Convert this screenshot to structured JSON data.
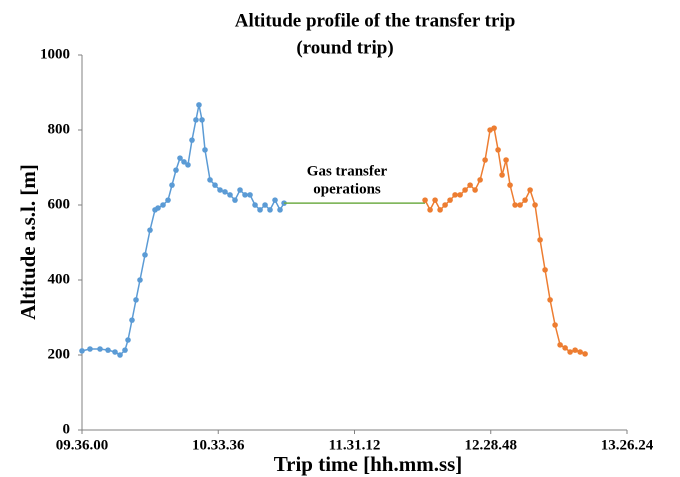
{
  "chart_data": {
    "type": "line",
    "title": [
      "Altitude profile of the transfer trip",
      "(round trip)"
    ],
    "xlabel": "Trip time [hh.mm.ss]",
    "ylabel": "Altitude a.s.l. [m]",
    "annotation": [
      "Gas transfer",
      "operations"
    ],
    "xlim": [
      34560,
      48384
    ],
    "xticks": [
      {
        "value": 34560,
        "label": "09.36.00"
      },
      {
        "value": 38016,
        "label": "10.33.36"
      },
      {
        "value": 41472,
        "label": "11.31.12"
      },
      {
        "value": 44928,
        "label": "12.28.48"
      },
      {
        "value": 48384,
        "label": "13.26.24"
      }
    ],
    "ylim": [
      0,
      1000
    ],
    "yticks": [
      0,
      200,
      400,
      600,
      800,
      1000
    ],
    "grid": false,
    "series": [
      {
        "color": "#5b9bd5",
        "markers": true,
        "x": [
          34560,
          34763,
          35017,
          35220,
          35397,
          35524,
          35651,
          35727,
          35828,
          35930,
          36031,
          36158,
          36285,
          36412,
          36488,
          36615,
          36742,
          36843,
          36944,
          37046,
          37147,
          37248,
          37350,
          37451,
          37527,
          37604,
          37680,
          37807,
          37934,
          38061,
          38187,
          38314,
          38441,
          38568,
          38695,
          38822,
          38949,
          39076,
          39203,
          39329,
          39456,
          39583,
          39685
        ],
        "values": [
          211,
          216,
          216,
          213,
          208,
          200,
          213,
          240,
          293,
          347,
          400,
          467,
          533,
          587,
          592,
          600,
          613,
          653,
          693,
          725,
          715,
          707,
          773,
          827,
          867,
          827,
          747,
          667,
          653,
          640,
          635,
          627,
          613,
          640,
          627,
          627,
          600,
          587,
          600,
          587,
          613,
          587,
          605
        ]
      },
      {
        "color": "#70ad47",
        "markers": false,
        "x": [
          39685,
          43262
        ],
        "values": [
          605,
          605
        ]
      },
      {
        "color": "#ed7d31",
        "markers": true,
        "x": [
          43262,
          43389,
          43516,
          43643,
          43770,
          43896,
          44023,
          44150,
          44277,
          44404,
          44531,
          44658,
          44785,
          44911,
          45013,
          45114,
          45215,
          45317,
          45418,
          45545,
          45672,
          45799,
          45926,
          46052,
          46179,
          46306,
          46433,
          46560,
          46687,
          46814,
          46941,
          47068,
          47195,
          47321
        ],
        "values": [
          613,
          587,
          613,
          587,
          600,
          613,
          627,
          627,
          640,
          653,
          640,
          667,
          720,
          800,
          805,
          747,
          680,
          720,
          653,
          600,
          600,
          613,
          640,
          600,
          507,
          427,
          347,
          280,
          227,
          219,
          208,
          213,
          208,
          203
        ]
      }
    ]
  }
}
